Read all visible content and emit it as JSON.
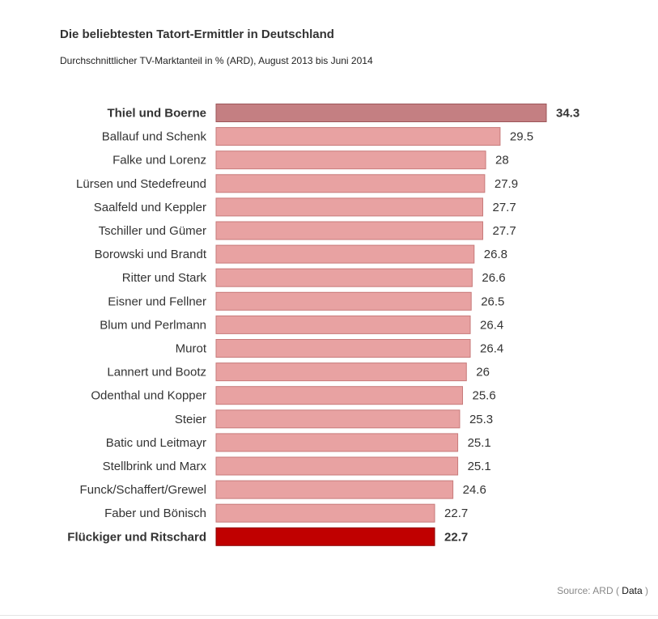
{
  "chart_data": {
    "type": "bar",
    "orientation": "horizontal",
    "title": "Die beliebtesten Tatort-Ermittler in Deutschland",
    "subtitle": "Durchschnittlicher TV-Marktanteil in % (ARD), August 2013 bis Juni 2014",
    "xlabel": "",
    "ylabel": "",
    "xlim": [
      0,
      34.3
    ],
    "grid": false,
    "legend": "none",
    "categories": [
      "Thiel und Boerne",
      "Ballauf und Schenk",
      "Falke und Lorenz",
      "Lürsen und Stedefreund",
      "Saalfeld und Keppler",
      "Tschiller und Gümer",
      "Borowski und Brandt",
      "Ritter und Stark",
      "Eisner und Fellner",
      "Blum und Perlmann",
      "Murot",
      "Lannert und Bootz",
      "Odenthal und Kopper",
      "Steier",
      "Batic und Leitmayr",
      "Stellbrink und Marx",
      "Funck/Schaffert/Grewel",
      "Faber und Bönisch",
      "Flückiger und Ritschard"
    ],
    "values": [
      34.3,
      29.5,
      28,
      27.9,
      27.7,
      27.7,
      26.8,
      26.6,
      26.5,
      26.4,
      26.4,
      26,
      25.6,
      25.3,
      25.1,
      25.1,
      24.6,
      22.7,
      22.7
    ],
    "value_labels": [
      "34.3",
      "29.5",
      "28",
      "27.9",
      "27.7",
      "27.7",
      "26.8",
      "26.6",
      "26.5",
      "26.4",
      "26.4",
      "26",
      "25.6",
      "25.3",
      "25.1",
      "25.1",
      "24.6",
      "22.7",
      "22.7"
    ],
    "highlighted": [
      "top",
      "normal",
      "normal",
      "normal",
      "normal",
      "normal",
      "normal",
      "normal",
      "normal",
      "normal",
      "normal",
      "normal",
      "normal",
      "normal",
      "normal",
      "normal",
      "normal",
      "normal",
      "bottom"
    ],
    "colors": {
      "normal": "#e8a2a2",
      "normal_stroke": "#c77a7a",
      "top": "#c47f82",
      "top_stroke": "#9c5558",
      "bottom": "#c00000",
      "bottom_stroke": "#8a0000"
    }
  },
  "source": {
    "prefix": "Source: ARD (",
    "link_label": "Data",
    "suffix": ")"
  }
}
